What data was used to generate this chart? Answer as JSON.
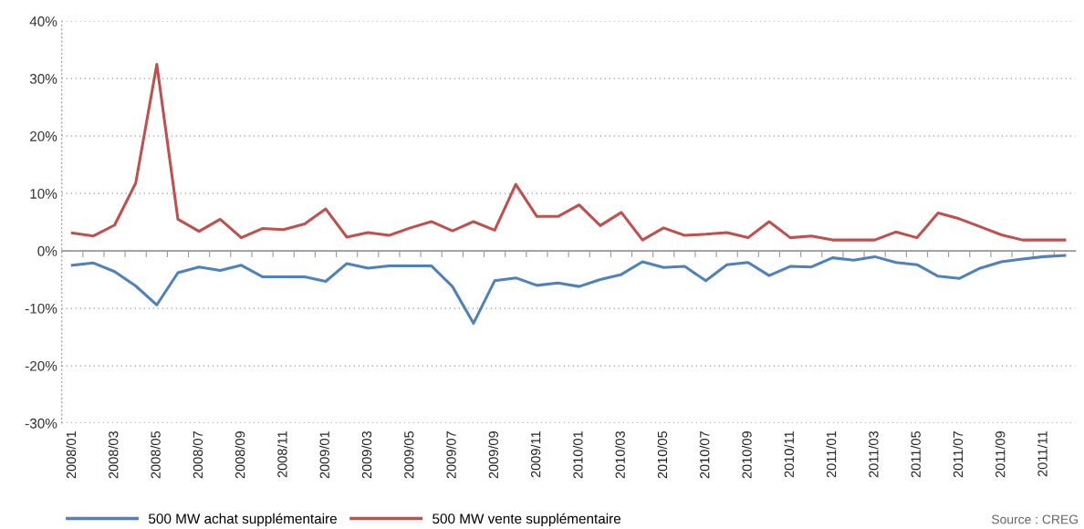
{
  "chart_data": {
    "type": "line",
    "categories": [
      "2008/01",
      null,
      "2008/03",
      null,
      "2008/05",
      null,
      "2008/07",
      null,
      "2008/09",
      null,
      "2008/11",
      null,
      "2009/01",
      null,
      "2009/03",
      null,
      "2009/05",
      null,
      "2009/07",
      null,
      "2009/09",
      null,
      "2009/11",
      null,
      "2010/01",
      null,
      "2010/03",
      null,
      "2010/05",
      null,
      "2010/07",
      null,
      "2010/09",
      null,
      "2010/11",
      null,
      "2011/01",
      null,
      "2011/03",
      null,
      "2011/05",
      null,
      "2011/07",
      null,
      "2011/09",
      null,
      "2011/11",
      null
    ],
    "series": [
      {
        "name": "500 MW achat supplémentaire",
        "color": "#4f81bd",
        "values": [
          -2.5,
          -2.1,
          -3.6,
          -6.1,
          -9.4,
          -3.8,
          -2.8,
          -3.4,
          -2.5,
          -4.5,
          -4.5,
          -4.5,
          -5.3,
          -2.2,
          -3.0,
          -2.6,
          -2.6,
          -2.6,
          -6.2,
          -12.6,
          -5.2,
          -4.7,
          -6.0,
          -5.6,
          -6.2,
          -5.0,
          -4.1,
          -1.9,
          -2.9,
          -2.7,
          -5.2,
          -2.4,
          -2.0,
          -4.3,
          -2.7,
          -2.8,
          -1.2,
          -1.6,
          -1.0,
          -2.0,
          -2.4,
          -4.4,
          -4.8,
          -3.0,
          -1.9,
          -1.4,
          -1.0,
          -0.8
        ]
      },
      {
        "name": "500 MW vente supplémentaire",
        "color": "#c0504d",
        "values": [
          3.1,
          2.6,
          4.5,
          11.8,
          32.5,
          5.5,
          3.4,
          5.5,
          2.3,
          3.9,
          3.7,
          4.7,
          7.3,
          2.4,
          3.2,
          2.7,
          4.0,
          5.1,
          3.5,
          5.1,
          3.6,
          11.6,
          6.0,
          6.0,
          8.0,
          4.4,
          6.7,
          1.9,
          4.0,
          2.7,
          2.9,
          3.2,
          2.3,
          5.1,
          2.3,
          2.6,
          1.9,
          1.9,
          1.9,
          3.3,
          2.3,
          6.6,
          5.6,
          4.2,
          2.8,
          1.9,
          1.9,
          1.9
        ]
      }
    ],
    "ylim": [
      -30,
      40
    ],
    "yticks": [
      {
        "value": -30,
        "label": "-30%"
      },
      {
        "value": -20,
        "label": "-20%"
      },
      {
        "value": -10,
        "label": "-10%"
      },
      {
        "value": 0,
        "label": "0%"
      },
      {
        "value": 10,
        "label": "10%"
      },
      {
        "value": 20,
        "label": "20%"
      },
      {
        "value": 30,
        "label": "30%"
      },
      {
        "value": 40,
        "label": "40%"
      }
    ],
    "grid": "y",
    "legend": "bottom left",
    "marker": "none",
    "line_style": "solid",
    "annotations": [
      "Source : CREG"
    ]
  }
}
